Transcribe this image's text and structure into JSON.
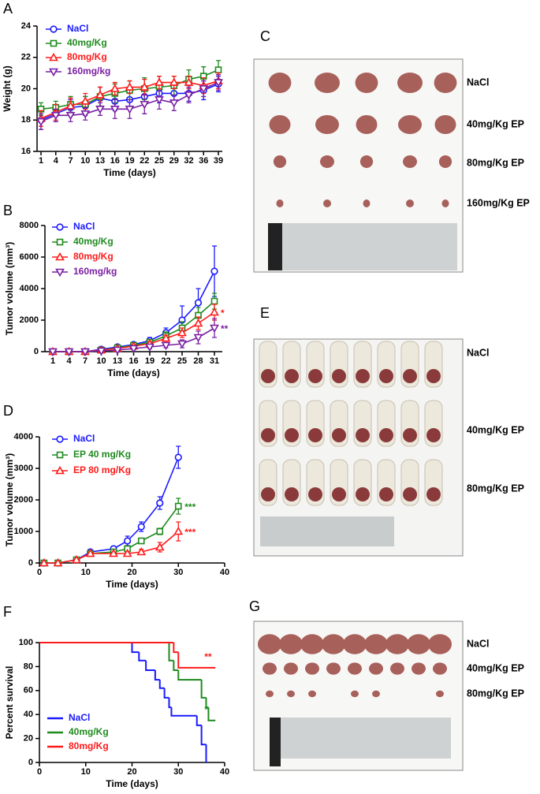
{
  "chart_data": [
    {
      "panel": "A",
      "type": "line",
      "ylabel": "Weight (g)",
      "xlabel": "Time (days)",
      "categories": [
        "1",
        "4",
        "7",
        "10",
        "13",
        "16",
        "19",
        "22",
        "25",
        "29",
        "32",
        "36",
        "39"
      ],
      "ylim": [
        16,
        24
      ],
      "yticks": [
        16,
        18,
        20,
        22,
        24
      ],
      "legend": "upper-left",
      "series": [
        {
          "name": "NaCl",
          "color": "#1a1aff",
          "marker": "circle",
          "values": [
            18.0,
            18.4,
            18.8,
            18.9,
            19.4,
            19.2,
            19.3,
            19.5,
            19.7,
            19.7,
            19.7,
            19.9,
            20.3
          ],
          "errors": [
            0.6,
            0.5,
            0.5,
            0.6,
            0.7,
            0.6,
            0.6,
            0.5,
            0.6,
            0.5,
            0.5,
            0.6,
            0.5
          ]
        },
        {
          "name": "40mg/Kg",
          "color": "#1f8a1f",
          "marker": "square",
          "values": [
            18.7,
            18.8,
            19.0,
            19.0,
            19.5,
            19.7,
            19.9,
            20.0,
            20.1,
            20.2,
            20.6,
            20.8,
            21.2
          ],
          "errors": [
            0.4,
            0.4,
            0.5,
            0.5,
            0.6,
            0.6,
            0.6,
            0.7,
            0.7,
            0.6,
            0.6,
            0.6,
            0.6
          ]
        },
        {
          "name": "80mg/Kg",
          "color": "#ff1a1a",
          "marker": "triangle-up",
          "values": [
            18.1,
            18.5,
            18.9,
            19.2,
            19.6,
            20.0,
            20.1,
            20.1,
            20.4,
            20.4,
            20.4,
            20.2,
            20.5
          ],
          "errors": [
            0.5,
            0.5,
            0.5,
            0.5,
            0.5,
            0.4,
            0.4,
            0.5,
            0.4,
            0.4,
            0.4,
            0.5,
            0.5
          ]
        },
        {
          "name": "160mg/kg",
          "color": "#7a1fa2",
          "marker": "triangle-down",
          "values": [
            17.9,
            18.3,
            18.3,
            18.4,
            18.7,
            18.7,
            18.7,
            19.0,
            19.3,
            19.1,
            19.6,
            20.0,
            20.4
          ],
          "errors": [
            0.5,
            0.4,
            0.4,
            0.4,
            0.4,
            0.6,
            0.6,
            0.6,
            0.6,
            0.5,
            0.5,
            0.5,
            0.5
          ]
        }
      ]
    },
    {
      "panel": "B",
      "type": "line",
      "ylabel": "Tumor volume (mm³)",
      "xlabel": "Time (days)",
      "categories": [
        "1",
        "4",
        "7",
        "10",
        "13",
        "16",
        "19",
        "22",
        "25",
        "28",
        "31"
      ],
      "ylim": [
        0,
        8000
      ],
      "yticks": [
        0,
        2000,
        4000,
        6000,
        8000
      ],
      "legend": "upper-left",
      "series": [
        {
          "name": "NaCl",
          "color": "#1a1aff",
          "marker": "circle",
          "values": [
            0,
            0,
            0,
            150,
            300,
            450,
            700,
            1200,
            2000,
            3100,
            5100
          ],
          "errors": [
            0,
            0,
            0,
            50,
            100,
            150,
            200,
            300,
            900,
            900,
            1600
          ]
        },
        {
          "name": "40mg/Kg",
          "color": "#1f8a1f",
          "marker": "square",
          "values": [
            0,
            0,
            0,
            100,
            250,
            400,
            600,
            1000,
            1500,
            2300,
            3200
          ],
          "errors": [
            0,
            0,
            0,
            40,
            80,
            100,
            150,
            250,
            400,
            500,
            500
          ]
        },
        {
          "name": "80mg/Kg",
          "color": "#ff1a1a",
          "marker": "triangle-up",
          "values": [
            0,
            0,
            0,
            100,
            200,
            350,
            500,
            850,
            1200,
            1800,
            2500
          ],
          "errors": [
            0,
            0,
            0,
            40,
            60,
            100,
            150,
            200,
            300,
            400,
            500
          ],
          "annotation": "*"
        },
        {
          "name": "160mg/kg",
          "color": "#7a1fa2",
          "marker": "triangle-down",
          "values": [
            0,
            0,
            0,
            50,
            100,
            200,
            300,
            400,
            500,
            900,
            1500
          ],
          "errors": [
            0,
            0,
            0,
            30,
            50,
            80,
            100,
            150,
            250,
            400,
            600
          ],
          "annotation": "**"
        }
      ]
    },
    {
      "panel": "D",
      "type": "line",
      "ylabel": "Tumor volume (mm³)",
      "xlabel": "Time (days)",
      "x": [
        1,
        4,
        8,
        11,
        16,
        19,
        22,
        26,
        30
      ],
      "xlim": [
        0,
        40
      ],
      "xticks": [
        0,
        10,
        20,
        30,
        40
      ],
      "ylim": [
        0,
        4000
      ],
      "yticks": [
        0,
        1000,
        2000,
        3000,
        4000
      ],
      "legend": "upper-left",
      "series": [
        {
          "name": "NaCl",
          "color": "#1a1aff",
          "marker": "circle",
          "values": [
            0,
            0,
            100,
            350,
            450,
            700,
            1150,
            1900,
            3350
          ],
          "errors": [
            0,
            0,
            30,
            50,
            80,
            150,
            150,
            200,
            350
          ]
        },
        {
          "name": "EP 40 mg/Kg",
          "color": "#1f8a1f",
          "marker": "square",
          "values": [
            0,
            0,
            100,
            300,
            350,
            450,
            700,
            1000,
            1800
          ],
          "errors": [
            0,
            0,
            30,
            40,
            50,
            80,
            80,
            100,
            250
          ],
          "annotation": "***"
        },
        {
          "name": "EP 80 mg/Kg",
          "color": "#ff1a1a",
          "marker": "triangle-up",
          "values": [
            0,
            0,
            100,
            300,
            300,
            300,
            350,
            500,
            1000
          ],
          "errors": [
            0,
            0,
            30,
            40,
            40,
            50,
            80,
            150,
            300
          ],
          "annotation": "***"
        }
      ]
    },
    {
      "panel": "F",
      "type": "step",
      "ylabel": "Percent survival",
      "xlabel": "Time (days)",
      "xlim": [
        0,
        40
      ],
      "xticks": [
        0,
        10,
        20,
        30,
        40
      ],
      "ylim": [
        0,
        100
      ],
      "yticks": [
        0,
        20,
        40,
        60,
        80,
        100
      ],
      "legend": "lower-left",
      "series": [
        {
          "name": "NaCl",
          "color": "#1a1aff",
          "x": [
            0,
            20,
            21.5,
            23,
            25,
            26,
            27,
            28,
            28.5,
            34,
            35,
            36
          ],
          "values": [
            100,
            92,
            85,
            77,
            69,
            62,
            54,
            46,
            39,
            31,
            15,
            0
          ]
        },
        {
          "name": "40mg/Kg",
          "color": "#1f8a1f",
          "x": [
            0,
            28,
            29,
            30,
            35,
            36,
            36.5,
            38
          ],
          "values": [
            100,
            85,
            77,
            69,
            54,
            46,
            35,
            35
          ],
          "annotation": "*"
        },
        {
          "name": "80mg/Kg",
          "color": "#ff1a1a",
          "x": [
            0,
            29,
            30,
            38
          ],
          "values": [
            100,
            92,
            79,
            79
          ],
          "annotation": "**"
        }
      ]
    }
  ],
  "photos": [
    {
      "panel": "C",
      "labels": [
        "NaCl",
        "40mg/Kg EP",
        "80mg/Kg EP",
        "160mg/Kg EP"
      ]
    },
    {
      "panel": "E",
      "labels": [
        "NaCl",
        "40mg/Kg EP",
        "80mg/Kg EP"
      ]
    },
    {
      "panel": "G",
      "labels": [
        "NaCl",
        "40mg/Kg EP",
        "80mg/Kg EP"
      ]
    }
  ]
}
